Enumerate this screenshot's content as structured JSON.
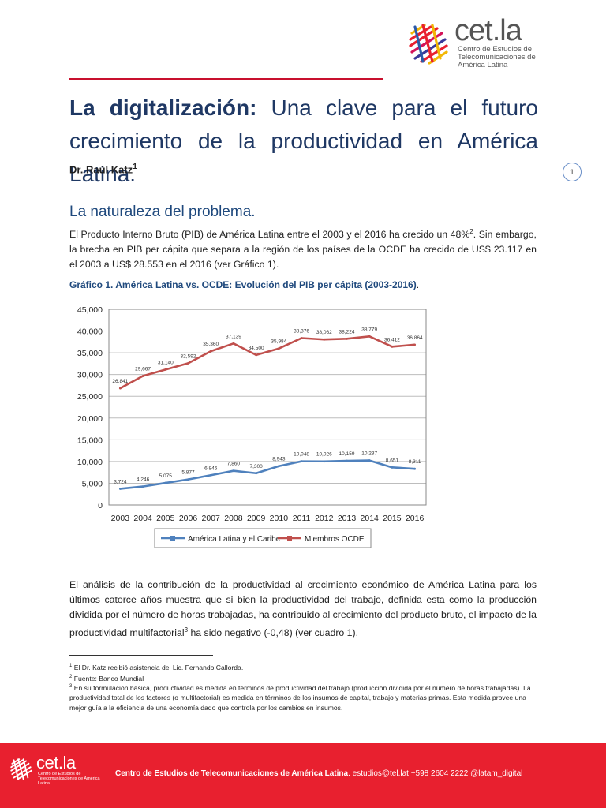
{
  "header": {
    "brand": "cet.la",
    "brand_sub": "Centro de Estudios de Telecomunicaciones de América Latina"
  },
  "title": {
    "bold": "La digitalización:",
    "rest": " Una clave para el futuro crecimiento de la productividad en América Latina."
  },
  "author": {
    "name": "Dr. Raúl Katz",
    "mark": "1"
  },
  "page_number": "1",
  "section_heading": "La naturaleza del problema.",
  "para1": {
    "a": "El Producto Interno Bruto (PIB) de América Latina entre el 2003 y el 2016 ha crecido un 48%",
    "mark": "2",
    "b": ". Sin embargo, la brecha en PIB per cápita que separa a la región de los países de la OCDE ha crecido de US$ 23.117 en el 2003 a US$ 28.553 en el 2016 (ver Gráfico 1)."
  },
  "caption": {
    "text": "Gráfico 1. América Latina vs. OCDE: Evolución del PIB per cápita (2003-2016)",
    "end": "."
  },
  "chart_data": {
    "type": "line",
    "x": [
      "2003",
      "2004",
      "2005",
      "2006",
      "2007",
      "2008",
      "2009",
      "2010",
      "2011",
      "2012",
      "2013",
      "2014",
      "2015",
      "2016"
    ],
    "y_ticks": [
      "0",
      "5,000",
      "10,000",
      "15,000",
      "20,000",
      "25,000",
      "30,000",
      "35,000",
      "40,000",
      "45,000"
    ],
    "ylim": [
      0,
      45000
    ],
    "grid": true,
    "legend_position": "bottom",
    "series": [
      {
        "name": "América Latina y el Caribe",
        "color": "#4f81bd",
        "values": [
          3724,
          4246,
          5075,
          5877,
          6846,
          7860,
          7300,
          8943,
          10048,
          10026,
          10159,
          10237,
          8651,
          8311
        ],
        "labels": [
          "3,724",
          "4,246",
          "5,075",
          "5,877",
          "6,846",
          "7,860",
          "7,300",
          "8,943",
          "10,048",
          "10,026",
          "10,159",
          "10,237",
          "8,651",
          "8,311"
        ]
      },
      {
        "name": "Miembros OCDE",
        "color": "#c0504d",
        "values": [
          26841,
          29667,
          31140,
          32592,
          35360,
          37139,
          34500,
          35984,
          38376,
          38062,
          38224,
          38779,
          36412,
          36864
        ],
        "labels": [
          "26,841",
          "29,667",
          "31,140",
          "32,592",
          "35,360",
          "37,139",
          "34,500",
          "35,984",
          "38,376",
          "38,062",
          "38,224",
          "38,779",
          "36,412",
          "36,864"
        ]
      }
    ]
  },
  "para2": {
    "a": "El análisis de la contribución de la productividad al crecimiento económico de América Latina para los últimos catorce años muestra que si bien la productividad del trabajo, definida esta como la producción dividida por el número de horas trabajadas, ha contribuido al crecimiento del producto bruto, el impacto de la productividad multifactorial",
    "mark": "3",
    "b": " ha sido negativo (-0,48) (ver cuadro 1)."
  },
  "footnotes": [
    {
      "mark": "1",
      "text": " El Dr. Katz recibió asistencia del Lic. Fernando Callorda."
    },
    {
      "mark": "2",
      "text": " Fuente: Banco Mundial"
    },
    {
      "mark": "3",
      "text": " En su formulación básica, productividad es medida en términos de productividad del trabajo (producción dividida por el número de horas trabajadas). La productividad total de los factores (o multifactorial) es medida en términos de los insumos de capital, trabajo y materias primas. Esta medida provee una mejor guía a la eficiencia de una economía dado que controla por los cambios en insumos."
    }
  ],
  "footer": {
    "brand": "cet.la",
    "brand_sub": "Centro de Estudios de Telecomunicaciones de América Latina",
    "org": "Centro de Estudios de Telecomunicaciones de América Latina",
    "contact": ". estudios@tel.lat +598 2604 2222 @latam_digital"
  },
  "colors": {
    "accent": "#c8102e",
    "title": "#1f3864",
    "footer_bg": "#e8202f"
  }
}
